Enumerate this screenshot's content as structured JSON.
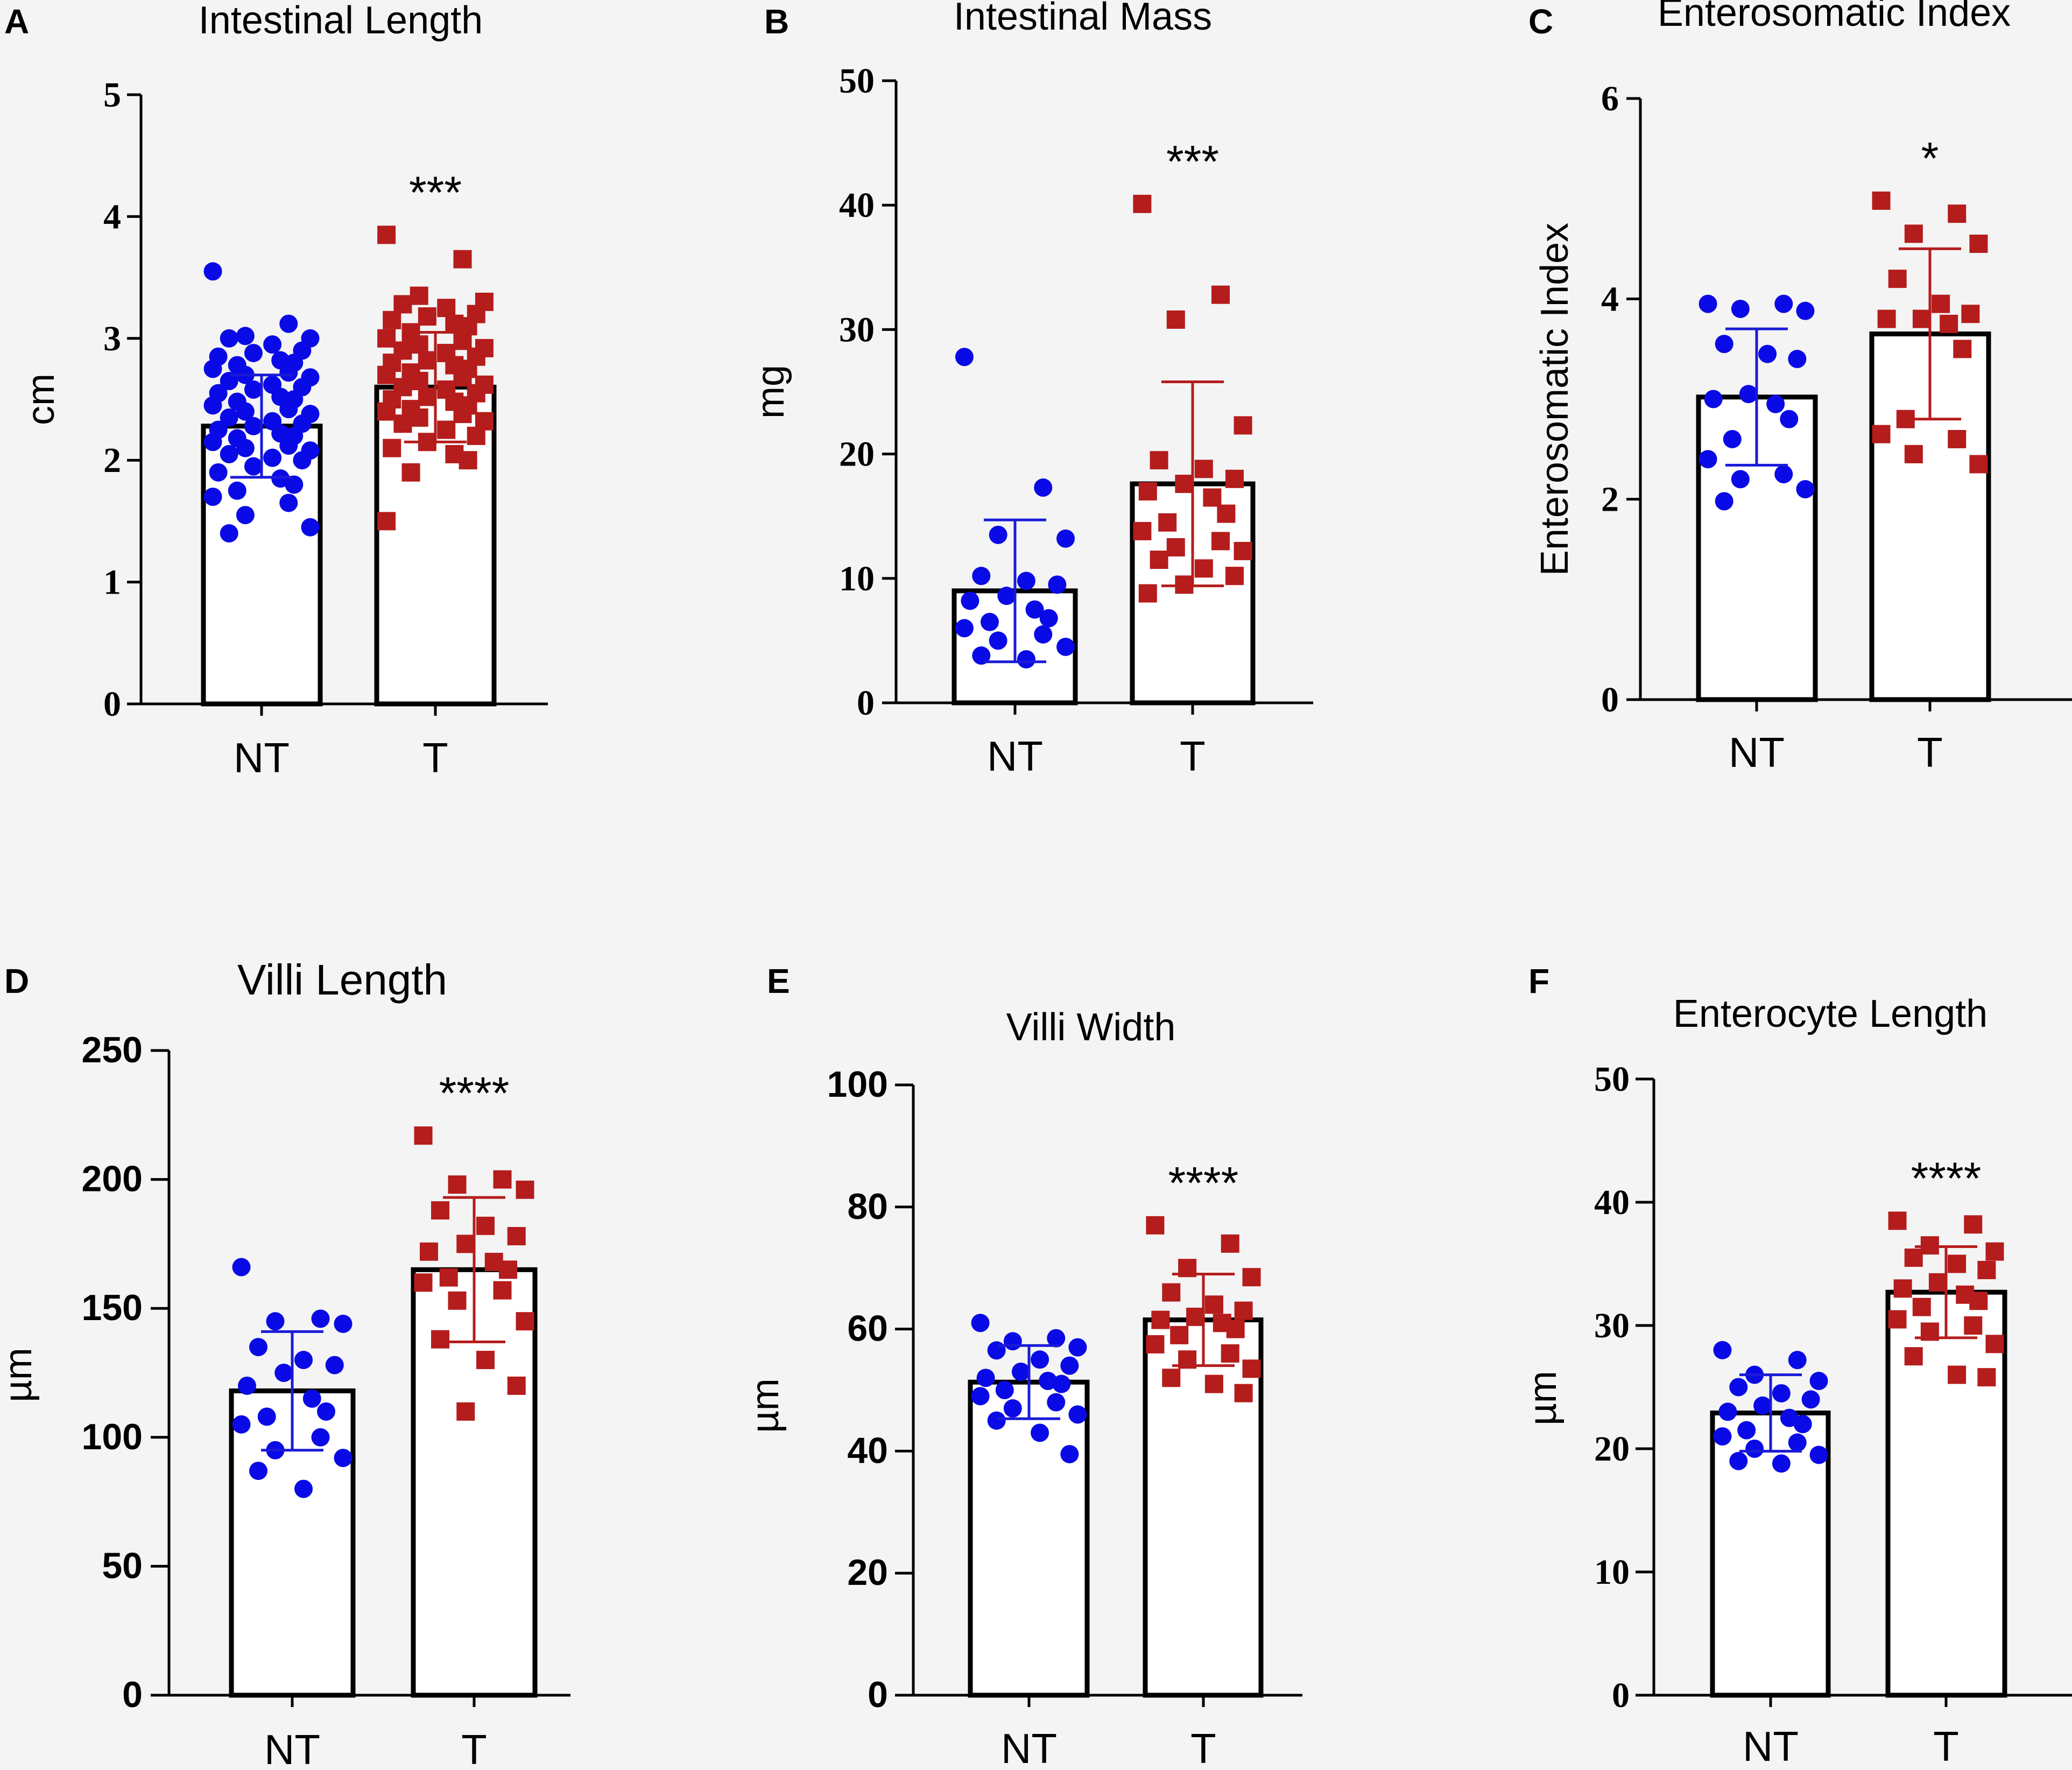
{
  "chart_data": [
    {
      "panel": "A",
      "type": "bar",
      "title": "Intestinal Length",
      "ylabel": "cm",
      "categories": [
        "NT",
        "T"
      ],
      "ylim": [
        0,
        5
      ],
      "ticks": [
        0,
        1,
        2,
        3,
        4,
        5
      ],
      "tick_font": "serif",
      "means": [
        2.28,
        2.6
      ],
      "sd": [
        0.42,
        0.45
      ],
      "significance": "***",
      "points": {
        "NT": [
          3.55,
          3.12,
          3.02,
          3.0,
          3.0,
          2.95,
          2.9,
          2.88,
          2.85,
          2.82,
          2.8,
          2.78,
          2.75,
          2.72,
          2.7,
          2.68,
          2.65,
          2.62,
          2.6,
          2.58,
          2.55,
          2.52,
          2.5,
          2.48,
          2.45,
          2.42,
          2.4,
          2.38,
          2.35,
          2.32,
          2.3,
          2.28,
          2.25,
          2.22,
          2.2,
          2.18,
          2.15,
          2.12,
          2.1,
          2.08,
          2.05,
          2.02,
          2.0,
          1.95,
          1.9,
          1.85,
          1.8,
          1.75,
          1.7,
          1.65,
          1.55,
          1.45,
          1.4
        ],
        "T": [
          3.85,
          3.65,
          3.35,
          3.3,
          3.28,
          3.25,
          3.2,
          3.18,
          3.15,
          3.12,
          3.1,
          3.05,
          3.0,
          2.98,
          2.95,
          2.92,
          2.9,
          2.88,
          2.85,
          2.82,
          2.8,
          2.78,
          2.75,
          2.72,
          2.7,
          2.68,
          2.65,
          2.62,
          2.6,
          2.58,
          2.55,
          2.52,
          2.5,
          2.48,
          2.45,
          2.42,
          2.4,
          2.38,
          2.35,
          2.32,
          2.3,
          2.25,
          2.2,
          2.15,
          2.1,
          2.05,
          2.0,
          1.9,
          1.5
        ]
      }
    },
    {
      "panel": "B",
      "type": "bar",
      "title": "Intestinal Mass",
      "ylabel": "mg",
      "categories": [
        "NT",
        "T"
      ],
      "ylim": [
        0,
        50
      ],
      "ticks": [
        0,
        10,
        20,
        30,
        40,
        50
      ],
      "tick_font": "serif",
      "means": [
        9.0,
        17.6
      ],
      "sd": [
        5.7,
        8.2
      ],
      "significance": "***",
      "points": {
        "NT": [
          27.8,
          17.3,
          13.5,
          13.2,
          10.2,
          9.8,
          9.5,
          8.6,
          8.2,
          7.5,
          6.8,
          6.5,
          6.0,
          5.5,
          5.0,
          4.5,
          3.8,
          3.5
        ],
        "T": [
          40.1,
          32.8,
          30.8,
          22.3,
          19.5,
          18.8,
          18.0,
          17.6,
          17.0,
          16.5,
          15.2,
          14.5,
          13.8,
          13.0,
          12.5,
          12.2,
          11.5,
          10.8,
          10.2,
          9.5,
          8.8
        ]
      }
    },
    {
      "panel": "C",
      "type": "bar",
      "title": "Enterosomatic Index",
      "ylabel": "Enterosomatic Index",
      "categories": [
        "NT",
        "T"
      ],
      "ylim": [
        0,
        6
      ],
      "ticks": [
        0,
        2,
        4,
        6
      ],
      "tick_font": "serif",
      "means": [
        3.02,
        3.65
      ],
      "sd": [
        0.68,
        0.85
      ],
      "significance": "*",
      "points": {
        "NT": [
          3.95,
          3.95,
          3.9,
          3.88,
          3.55,
          3.45,
          3.4,
          3.05,
          3.0,
          2.95,
          2.8,
          2.6,
          2.4,
          2.25,
          2.2,
          2.1,
          1.98
        ],
        "T": [
          4.98,
          4.85,
          4.65,
          4.55,
          4.2,
          3.95,
          3.85,
          3.8,
          3.8,
          3.75,
          3.5,
          2.8,
          2.65,
          2.6,
          2.45,
          2.35
        ]
      }
    },
    {
      "panel": "D",
      "type": "bar",
      "title": "Villi Length",
      "ylabel": "µm",
      "categories": [
        "NT",
        "T"
      ],
      "ylim": [
        0,
        250
      ],
      "ticks": [
        0,
        50,
        100,
        150,
        200,
        250
      ],
      "tick_font": "sans",
      "means": [
        118,
        165
      ],
      "sd": [
        23,
        28
      ],
      "significance": "****",
      "points": {
        "NT": [
          166,
          146,
          145,
          144,
          135,
          130,
          128,
          125,
          120,
          115,
          110,
          108,
          105,
          100,
          95,
          92,
          87,
          80
        ],
        "T": [
          217,
          200,
          198,
          196,
          188,
          182,
          178,
          175,
          172,
          168,
          165,
          162,
          160,
          157,
          153,
          145,
          138,
          130,
          120,
          110
        ]
      }
    },
    {
      "panel": "E",
      "type": "bar",
      "title": "Villi Width",
      "ylabel": "µm",
      "categories": [
        "NT",
        "T"
      ],
      "ylim": [
        0,
        100
      ],
      "ticks": [
        0,
        20,
        40,
        60,
        80,
        100
      ],
      "tick_font": "sans",
      "means": [
        51.3,
        61.5
      ],
      "sd": [
        6.0,
        7.5
      ],
      "significance": "****",
      "points": {
        "NT": [
          61.0,
          58.5,
          58.0,
          57.0,
          56.5,
          55.0,
          54.0,
          53.0,
          52.0,
          51.5,
          51.0,
          50.0,
          49.0,
          48.0,
          47.0,
          46.0,
          45.0,
          43.0,
          39.5
        ],
        "T": [
          77.0,
          74.0,
          70.0,
          68.5,
          66.0,
          64.0,
          63.0,
          62.0,
          61.5,
          61.0,
          60.0,
          59.0,
          57.5,
          56.0,
          55.0,
          53.5,
          52.0,
          51.0,
          49.5
        ]
      }
    },
    {
      "panel": "F",
      "type": "bar",
      "title": "Enterocyte Length",
      "ylabel": "µm",
      "categories": [
        "NT",
        "T"
      ],
      "ylim": [
        0,
        50
      ],
      "ticks": [
        0,
        10,
        20,
        30,
        40,
        50
      ],
      "tick_font": "serif",
      "means": [
        22.9,
        32.7
      ],
      "sd": [
        3.1,
        3.7
      ],
      "significance": "****",
      "points": {
        "NT": [
          28.0,
          27.2,
          26.0,
          25.5,
          25.0,
          24.5,
          24.0,
          23.5,
          23.0,
          22.5,
          22.0,
          21.5,
          21.0,
          20.5,
          20.0,
          19.5,
          19.0,
          18.8
        ],
        "T": [
          38.5,
          38.2,
          36.5,
          36.0,
          35.5,
          35.0,
          34.5,
          33.5,
          33.0,
          32.5,
          32.0,
          31.5,
          30.5,
          30.0,
          29.5,
          28.5,
          27.5,
          26.0,
          25.8
        ]
      }
    }
  ],
  "colors": {
    "NT": "#0a0ae6",
    "T": "#b51c1c",
    "NT_error": "#1a1ad8",
    "T_error": "#b51c1c",
    "axis": "#000000"
  }
}
